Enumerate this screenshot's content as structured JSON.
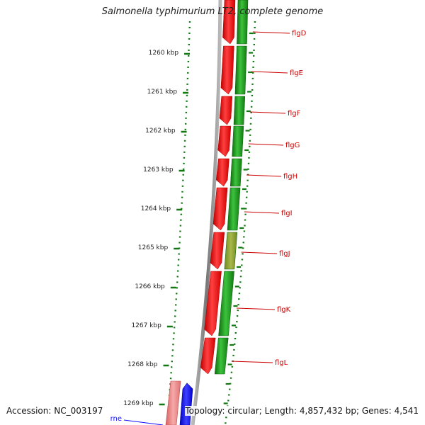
{
  "title": "Salmonella typhimurium LT2, complete genome",
  "footer": {
    "accession": "Accession: NC_003197",
    "topology": "Topology: circular; Length: 4,857,432 bp; Genes: 4,541"
  },
  "colors": {
    "forward_gene": "#22a022",
    "reverse_gene": "#ff1010",
    "gene_label": "#cc0000",
    "rne_gene": "#e87878",
    "blue_gene": "#1010ff",
    "tick": "#117711",
    "backbone": "#888888"
  },
  "ruler": {
    "labels": [
      "1260 kbp",
      "1261 kbp",
      "1262 kbp",
      "1263 kbp",
      "1264 kbp",
      "1265 kbp",
      "1266 kbp",
      "1267 kbp",
      "1268 kbp",
      "1269 kbp"
    ]
  },
  "genes": [
    {
      "name": "flgD",
      "strand": "forward"
    },
    {
      "name": "flgE",
      "strand": "forward"
    },
    {
      "name": "flgF",
      "strand": "forward"
    },
    {
      "name": "flgG",
      "strand": "forward"
    },
    {
      "name": "flgH",
      "strand": "forward"
    },
    {
      "name": "flgI",
      "strand": "forward"
    },
    {
      "name": "flgJ",
      "strand": "forward"
    },
    {
      "name": "flgK",
      "strand": "forward"
    },
    {
      "name": "flgL",
      "strand": "forward"
    },
    {
      "name": "rne",
      "strand": "reverse"
    }
  ]
}
